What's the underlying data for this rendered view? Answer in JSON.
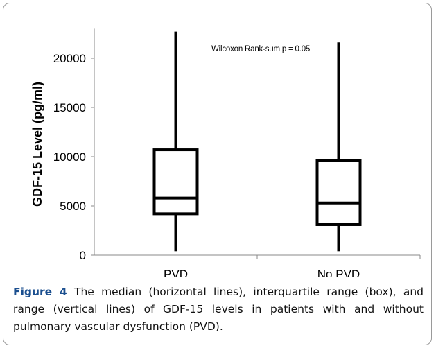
{
  "chart_data": {
    "type": "boxplot",
    "ylabel": "GDF-15 Level  (pg/ml)",
    "ylim": [
      0,
      23000
    ],
    "yticks": [
      0,
      5000,
      10000,
      15000,
      20000
    ],
    "ytick_labels": [
      "0",
      "5000",
      "10000",
      "15000",
      "20000"
    ],
    "categories": [
      "PVD",
      "No PVD"
    ],
    "boxes": [
      {
        "category": "PVD",
        "min": 400,
        "q1": 4200,
        "median": 5800,
        "q3": 10700,
        "max": 22700
      },
      {
        "category": "No PVD",
        "min": 400,
        "q1": 3100,
        "median": 5300,
        "q3": 9600,
        "max": 21600
      }
    ],
    "annotation": "Wilcoxon Rank-sum p = 0.05",
    "grid": false,
    "colors": {
      "box": "#000000",
      "axis": "#888888"
    }
  },
  "caption": {
    "label": "Figure 4",
    "text": " The median (horizontal lines), interquartile range (box), and range (vertical lines) of GDF-15 levels in patients with and without pulmonary vascular dysfunction (PVD)."
  }
}
